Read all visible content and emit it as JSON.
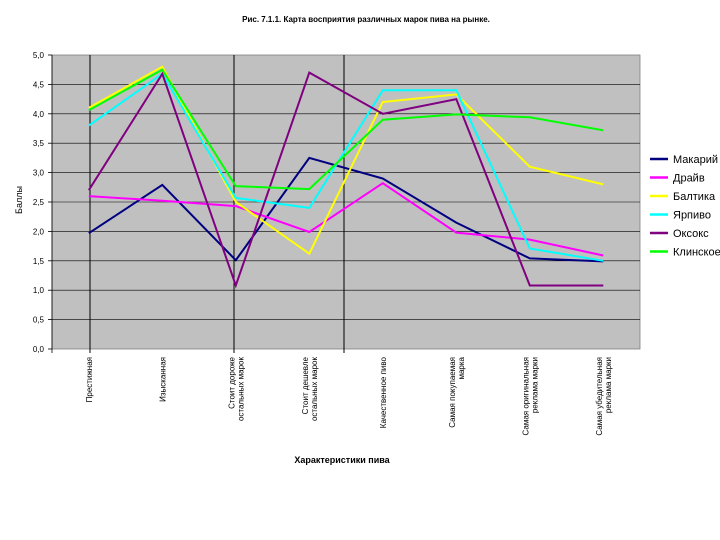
{
  "chart_data": {
    "type": "line",
    "title": "Рис. 7.1.1. Карта восприятия различных марок пива на рынке.",
    "xlabel": "Характеристики пива",
    "ylabel": "Баллы",
    "ylim": [
      0,
      5
    ],
    "y_ticks": [
      "0,0",
      "0,5",
      "1,0",
      "1,5",
      "2,0",
      "2,5",
      "3,0",
      "3,5",
      "4,0",
      "4,5",
      "5,0"
    ],
    "categories": [
      "Престижная",
      "Изысканная",
      "Стоит дороже остальных марок",
      "Стоит дешевле остальных марок",
      "Качественное пиво",
      "Самая покупаемая марка",
      "Самая оригинальная реклама марки",
      "Самая убедительная реклама марки"
    ],
    "series": [
      {
        "name": "Макарий",
        "color": "#000080",
        "values": [
          1.97,
          2.79,
          1.51,
          3.25,
          2.9,
          2.15,
          1.54,
          1.49
        ]
      },
      {
        "name": "Драйв",
        "color": "#ff00ff",
        "values": [
          2.6,
          2.52,
          2.43,
          1.99,
          2.82,
          1.98,
          1.86,
          1.59
        ]
      },
      {
        "name": "Балтика",
        "color": "#ffff00",
        "values": [
          4.1,
          4.8,
          2.5,
          1.62,
          4.2,
          4.33,
          3.1,
          2.8
        ]
      },
      {
        "name": "Ярпиво",
        "color": "#00ffff",
        "values": [
          3.8,
          4.68,
          2.57,
          2.4,
          4.4,
          4.4,
          1.71,
          1.5
        ]
      },
      {
        "name": "Оксокс",
        "color": "#800080",
        "values": [
          2.7,
          4.68,
          1.08,
          4.7,
          4.0,
          4.25,
          1.08,
          1.08
        ]
      },
      {
        "name": "Клинское",
        "color": "#00ff00",
        "values": [
          4.06,
          4.75,
          2.77,
          2.72,
          3.9,
          3.99,
          3.94,
          3.72
        ]
      }
    ],
    "grid": true,
    "legend": "right",
    "plot_background": "#c0c0c0"
  }
}
